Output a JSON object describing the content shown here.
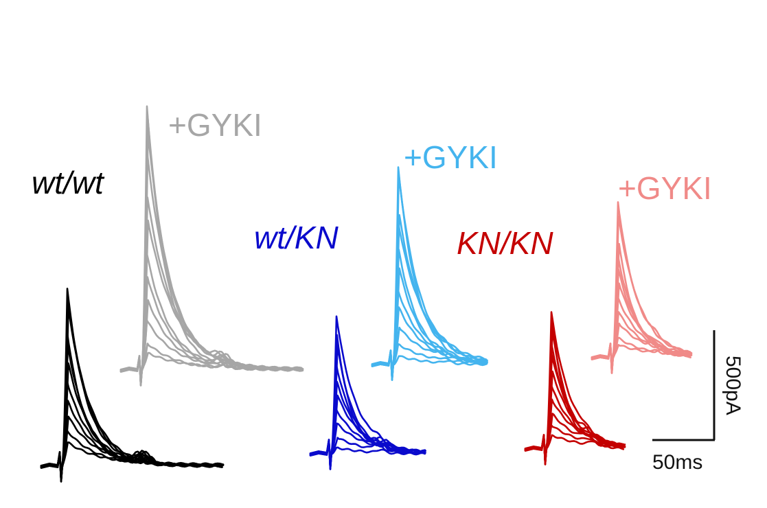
{
  "chart_data": {
    "type": "line",
    "panels": [
      {
        "label": "wt/wt",
        "color": "#000000",
        "label_italic": true,
        "amplitudes_pA": [
          800,
          760,
          720,
          600,
          550,
          460,
          380,
          300,
          220,
          160,
          100
        ],
        "bump_pA": 45
      },
      {
        "label": "+GYKI",
        "color": "#a6a6a6",
        "label_italic": false,
        "amplitudes_pA": [
          1200,
          1150,
          1080,
          1000,
          780,
          680,
          520,
          420,
          320,
          220,
          120,
          70
        ],
        "bump_pA": 35
      },
      {
        "label": "wt/KN",
        "color": "#0a0acc",
        "label_italic": true,
        "amplitudes_pA": [
          620,
          540,
          480,
          400,
          330,
          260,
          200,
          130,
          70,
          30
        ],
        "bump_pA": 30
      },
      {
        "label": "+GYKI",
        "color": "#44b4ee",
        "label_italic": false,
        "amplitudes_pA": [
          900,
          860,
          680,
          640,
          520,
          440,
          330,
          260,
          160,
          90,
          40
        ],
        "bump_pA": 15
      },
      {
        "label": "KN/KN",
        "color": "#c40000",
        "label_italic": true,
        "amplitudes_pA": [
          620,
          590,
          540,
          480,
          420,
          350,
          290,
          220,
          160,
          100,
          60
        ],
        "bump_pA": 25
      },
      {
        "label": "+GYKI",
        "color": "#f08a88",
        "label_italic": false,
        "amplitudes_pA": [
          700,
          640,
          520,
          460,
          400,
          330,
          270,
          210,
          150,
          90,
          50
        ],
        "bump_pA": 15
      }
    ],
    "scale_bar": {
      "current_label": "500pA",
      "time_label": "50ms",
      "current_pA": 500,
      "time_ms": 50
    }
  }
}
